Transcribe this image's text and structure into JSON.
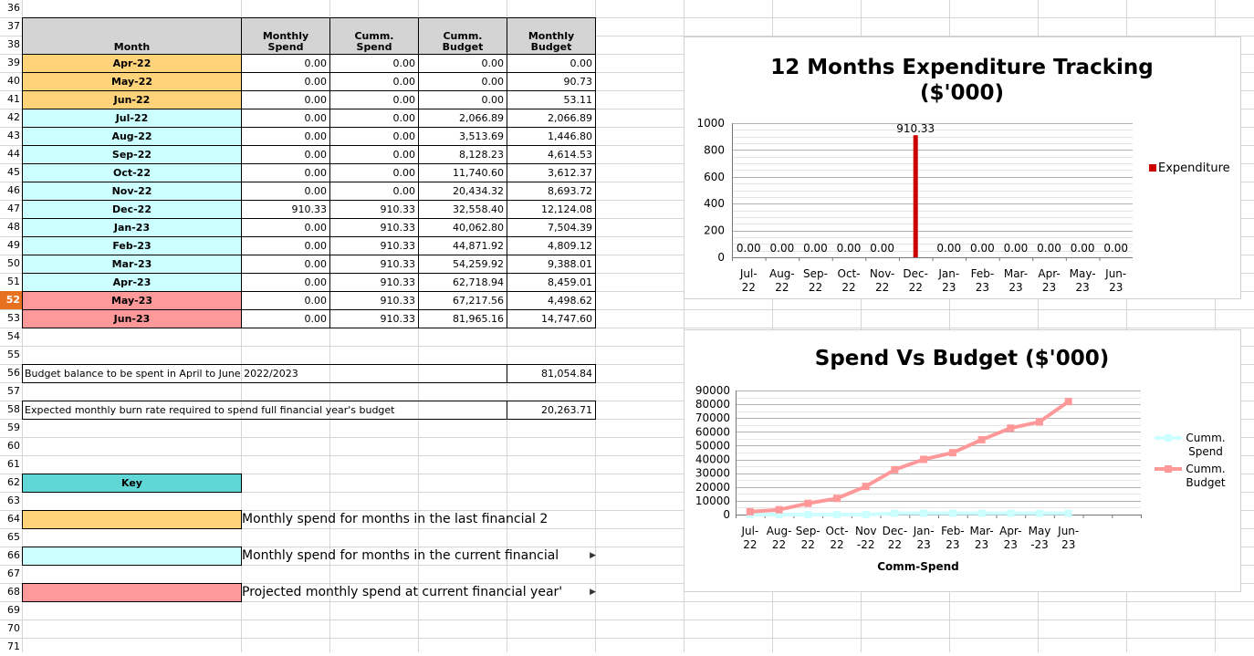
{
  "row_numbers": [
    "36",
    "37",
    "38",
    "39",
    "40",
    "41",
    "42",
    "43",
    "44",
    "45",
    "46",
    "47",
    "48",
    "49",
    "50",
    "51",
    "52",
    "53",
    "54",
    "55",
    "56",
    "57",
    "58",
    "59",
    "60",
    "61",
    "62",
    "63",
    "64",
    "65",
    "66",
    "67",
    "68",
    "69",
    "70",
    "71"
  ],
  "selected_row": "52",
  "table": {
    "headers": {
      "month": "Month",
      "monthly_spend": [
        "Monthly",
        "Spend"
      ],
      "cumm_spend": [
        "Cumm.",
        "Spend"
      ],
      "cumm_budget": [
        "Cumm.",
        "Budget"
      ],
      "monthly_budget": [
        "Monthly",
        "Budget"
      ]
    },
    "rows": [
      {
        "month": "Apr-22",
        "monthly_spend": "0.00",
        "cumm_spend": "0.00",
        "cumm_budget": "0.00",
        "monthly_budget": "0.00",
        "color": "orange"
      },
      {
        "month": "May-22",
        "monthly_spend": "0.00",
        "cumm_spend": "0.00",
        "cumm_budget": "0.00",
        "monthly_budget": "90.73",
        "color": "orange"
      },
      {
        "month": "Jun-22",
        "monthly_spend": "0.00",
        "cumm_spend": "0.00",
        "cumm_budget": "0.00",
        "monthly_budget": "53.11",
        "color": "orange"
      },
      {
        "month": "Jul-22",
        "monthly_spend": "0.00",
        "cumm_spend": "0.00",
        "cumm_budget": "2,066.89",
        "monthly_budget": "2,066.89",
        "color": "cyan"
      },
      {
        "month": "Aug-22",
        "monthly_spend": "0.00",
        "cumm_spend": "0.00",
        "cumm_budget": "3,513.69",
        "monthly_budget": "1,446.80",
        "color": "cyan"
      },
      {
        "month": "Sep-22",
        "monthly_spend": "0.00",
        "cumm_spend": "0.00",
        "cumm_budget": "8,128.23",
        "monthly_budget": "4,614.53",
        "color": "cyan"
      },
      {
        "month": "Oct-22",
        "monthly_spend": "0.00",
        "cumm_spend": "0.00",
        "cumm_budget": "11,740.60",
        "monthly_budget": "3,612.37",
        "color": "cyan"
      },
      {
        "month": "Nov-22",
        "monthly_spend": "0.00",
        "cumm_spend": "0.00",
        "cumm_budget": "20,434.32",
        "monthly_budget": "8,693.72",
        "color": "cyan"
      },
      {
        "month": "Dec-22",
        "monthly_spend": "910.33",
        "cumm_spend": "910.33",
        "cumm_budget": "32,558.40",
        "monthly_budget": "12,124.08",
        "color": "cyan"
      },
      {
        "month": "Jan-23",
        "monthly_spend": "0.00",
        "cumm_spend": "910.33",
        "cumm_budget": "40,062.80",
        "monthly_budget": "7,504.39",
        "color": "cyan"
      },
      {
        "month": "Feb-23",
        "monthly_spend": "0.00",
        "cumm_spend": "910.33",
        "cumm_budget": "44,871.92",
        "monthly_budget": "4,809.12",
        "color": "cyan"
      },
      {
        "month": "Mar-23",
        "monthly_spend": "0.00",
        "cumm_spend": "910.33",
        "cumm_budget": "54,259.92",
        "monthly_budget": "9,388.01",
        "color": "cyan"
      },
      {
        "month": "Apr-23",
        "monthly_spend": "0.00",
        "cumm_spend": "910.33",
        "cumm_budget": "62,718.94",
        "monthly_budget": "8,459.01",
        "color": "cyan"
      },
      {
        "month": "May-23",
        "monthly_spend": "0.00",
        "cumm_spend": "910.33",
        "cumm_budget": "67,217.56",
        "monthly_budget": "4,498.62",
        "color": "red"
      },
      {
        "month": "Jun-23",
        "monthly_spend": "0.00",
        "cumm_spend": "910.33",
        "cumm_budget": "81,965.16",
        "monthly_budget": "14,747.60",
        "color": "red"
      }
    ]
  },
  "summary": {
    "balance_label": "Budget balance to be spent in April to June 2022/2023",
    "balance_value": "81,054.84",
    "burn_label": "Expected monthly burn rate required to spend full financial year's budget",
    "burn_value": "20,263.71"
  },
  "key": {
    "title": "Key",
    "items": [
      {
        "color": "orange",
        "text": "Monthly spend for months in the last financial 2"
      },
      {
        "color": "cyan",
        "text": "Monthly spend for months in the current financial"
      },
      {
        "color": "red",
        "text": "Projected monthly spend at current financial year'"
      }
    ]
  },
  "colors": {
    "orange": "#ffd37a",
    "cyan": "#ccffff",
    "red": "#ff9999",
    "key_header": "#5fd7d7",
    "bar": "#cc0000",
    "spend_line": "#ccffff",
    "budget_line": "#ff9999"
  },
  "chart_data": [
    {
      "type": "bar",
      "title": "12 Months Expenditure Tracking",
      "subtitle": "($'000)",
      "categories": [
        [
          "Jul-",
          "22"
        ],
        [
          "Aug-",
          "22"
        ],
        [
          "Sep-",
          "22"
        ],
        [
          "Oct-",
          "22"
        ],
        [
          "Nov-",
          "22"
        ],
        [
          "Dec-",
          "22"
        ],
        [
          "Jan-",
          "23"
        ],
        [
          "Feb-",
          "23"
        ],
        [
          "Mar-",
          "23"
        ],
        [
          "Apr-",
          "23"
        ],
        [
          "May-",
          "23"
        ],
        [
          "Jun-",
          "23"
        ]
      ],
      "series": [
        {
          "name": "Expenditure",
          "values": [
            0,
            0,
            0,
            0,
            0,
            910.33,
            0,
            0,
            0,
            0,
            0,
            0
          ]
        }
      ],
      "data_labels": [
        "0.00",
        "0.00",
        "0.00",
        "0.00",
        "0.00",
        "910.33",
        "0.00",
        "0.00",
        "0.00",
        "0.00",
        "0.00",
        "0.00"
      ],
      "ylim": [
        0,
        1000
      ],
      "yticks": [
        0,
        200,
        400,
        600,
        800,
        1000
      ],
      "grid": true,
      "legend": "right"
    },
    {
      "type": "line",
      "title": "Spend Vs Budget ($'000)",
      "xlabel": "Comm-Spend",
      "categories": [
        [
          "Jul-",
          "22"
        ],
        [
          "Aug-",
          "22"
        ],
        [
          "Sep-",
          "22"
        ],
        [
          "Oct-",
          "22"
        ],
        [
          "Nov",
          "-22"
        ],
        [
          "Dec-",
          "22"
        ],
        [
          "Jan-",
          "23"
        ],
        [
          "Feb-",
          "23"
        ],
        [
          "Mar-",
          "23"
        ],
        [
          "Apr-",
          "23"
        ],
        [
          "May",
          "-23"
        ],
        [
          "Jun-",
          "23"
        ]
      ],
      "series": [
        {
          "name": [
            "Cumm.",
            "Spend"
          ],
          "values": [
            0,
            0,
            0,
            0,
            0,
            910.33,
            910.33,
            910.33,
            910.33,
            910.33,
            910.33,
            910.33
          ]
        },
        {
          "name": [
            "Cumm.",
            "Budget"
          ],
          "values": [
            2066.89,
            3513.69,
            8128.23,
            11740.6,
            20434.32,
            32558.4,
            40062.8,
            44871.92,
            54259.92,
            62718.94,
            67217.56,
            81965.16
          ]
        }
      ],
      "ylim": [
        0,
        90000
      ],
      "yticks": [
        0,
        10000,
        20000,
        30000,
        40000,
        50000,
        60000,
        70000,
        80000,
        90000
      ],
      "grid": true,
      "legend": "right"
    }
  ]
}
